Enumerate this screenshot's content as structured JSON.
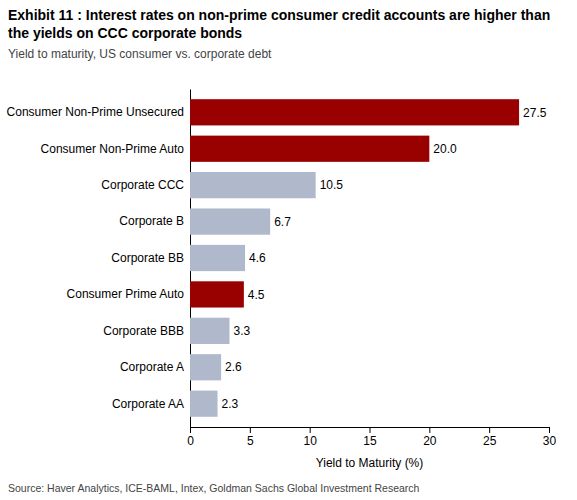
{
  "chart_data": {
    "type": "bar",
    "orientation": "horizontal",
    "title": "Exhibit 11 : Interest rates on non-prime consumer credit accounts are higher than the yields on CCC corporate bonds",
    "subtitle": "Yield to maturity, US consumer vs. corporate debt",
    "source": "Source: Haver Analytics, ICE-BAML, Intex, Goldman Sachs Global Investment Research",
    "x_label": "Yield to Maturity (%)",
    "categories": [
      "Consumer Non-Prime Unsecured",
      "Consumer Non-Prime Auto",
      "Corporate CCC",
      "Corporate B",
      "Corporate BB",
      "Consumer Prime Auto",
      "Corporate BBB",
      "Corporate A",
      "Corporate AA"
    ],
    "values": [
      27.5,
      20.0,
      10.5,
      6.7,
      4.6,
      4.5,
      3.3,
      2.6,
      2.3
    ],
    "value_labels": [
      "27.5",
      "20.0",
      "10.5",
      "6.7",
      "4.6",
      "4.5",
      "3.3",
      "2.6",
      "2.3"
    ],
    "data_labels": true,
    "colors": [
      "#990000",
      "#990000",
      "#b0b8cc",
      "#b0b8cc",
      "#b0b8cc",
      "#990000",
      "#b0b8cc",
      "#b0b8cc",
      "#b0b8cc"
    ],
    "xlim": [
      0,
      30
    ],
    "xticks": [
      0,
      5,
      10,
      15,
      20,
      25,
      30
    ]
  }
}
